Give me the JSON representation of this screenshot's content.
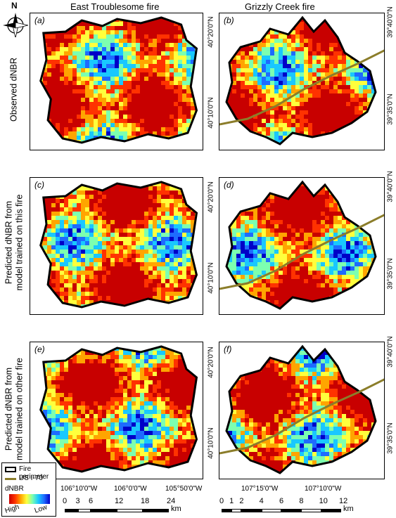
{
  "columns": {
    "left_title": "East Troublesome fire",
    "right_title": "Grizzly Creek fire"
  },
  "rows": [
    {
      "label_lines": [
        "Observed dNBR"
      ]
    },
    {
      "label_lines": [
        "Predicted dNBR from",
        "model trained on this fire"
      ]
    },
    {
      "label_lines": [
        "Predicted dNBR from",
        "model trained on other fire"
      ]
    }
  ],
  "panels": {
    "a": "(a)",
    "b": "(b)",
    "c": "(c)",
    "d": "(d)",
    "e": "(e)",
    "f": "(f)"
  },
  "north_arrow": {
    "label": "N"
  },
  "left_lat_labels": [
    "40°20'0\"N",
    "40°10'0\"N"
  ],
  "right_lat_labels": [
    "39°40'0\"N",
    "39°35'0\"N"
  ],
  "left_lon_labels": [
    "106°10'0\"W",
    "106°0'0\"W",
    "105°50'0\"W"
  ],
  "right_lon_labels": [
    "107°15'0\"W",
    "107°10'0\"W"
  ],
  "legend": {
    "perimeter": "Fire perimeter",
    "highway": "US I-70",
    "dnbr_title": "dNBR",
    "high": "High",
    "low": "Low",
    "colors": {
      "perimeter": "#000000",
      "highway": "#8b7d2a"
    }
  },
  "scale_left": {
    "ticks": [
      "0",
      "3",
      "6",
      "12",
      "18",
      "24"
    ],
    "unit": "km"
  },
  "scale_right": {
    "ticks": [
      "0",
      "1",
      "2",
      "4",
      "6",
      "8",
      "10",
      "12"
    ],
    "unit": "km"
  },
  "palette": [
    "#0000c8",
    "#1e6bff",
    "#19c8ff",
    "#7cffb0",
    "#ffff3c",
    "#ffa500",
    "#ff3200",
    "#c80000"
  ]
}
